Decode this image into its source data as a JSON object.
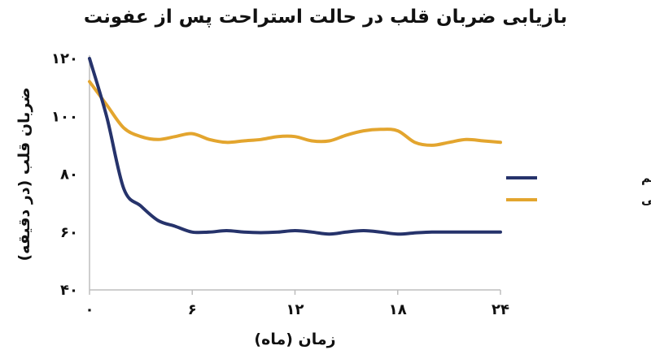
{
  "chart_data": {
    "type": "line",
    "title": "بازیابی ضربان قلب در حالت استراحت پس از عفونت",
    "xlabel": "زمان (ماه)",
    "ylabel": "ضربان قلب (در دقیقه)",
    "xlim": [
      0,
      24
    ],
    "ylim": [
      40,
      120
    ],
    "x_ticks": [
      0,
      6,
      12,
      18,
      24
    ],
    "x_tick_labels": [
      "۰",
      "۶",
      "۱۲",
      "۱۸",
      "۲۴"
    ],
    "y_ticks": [
      40,
      60,
      80,
      100,
      120
    ],
    "y_tick_labels": [
      "۴۰",
      "۶۰",
      "۸۰",
      "۱۰۰",
      "۱۲۰"
    ],
    "grid": false,
    "legend_position": "right",
    "series": [
      {
        "name": "فرد سالم",
        "color": "#26336b",
        "x": [
          0,
          1,
          2,
          3,
          4,
          5,
          6,
          7,
          8,
          9,
          10,
          11,
          12,
          13,
          14,
          15,
          16,
          17,
          18,
          19,
          20,
          21,
          22,
          23,
          24
        ],
        "values": [
          120,
          100,
          75,
          69,
          64,
          62,
          60,
          60,
          60.5,
          60,
          59.8,
          60,
          60.5,
          60,
          59.3,
          60,
          60.5,
          60,
          59.3,
          59.7,
          60,
          60,
          60,
          60,
          60
        ]
      },
      {
        "name": "بیمار کووید طولانی",
        "color": "#e3a52e",
        "x": [
          0,
          1,
          2,
          3,
          4,
          5,
          6,
          7,
          8,
          9,
          10,
          11,
          12,
          13,
          14,
          15,
          16,
          17,
          18,
          19,
          20,
          21,
          22,
          23,
          24
        ],
        "values": [
          112,
          104,
          96,
          93,
          92,
          93,
          94,
          92,
          91,
          91.5,
          92,
          93,
          93,
          91.5,
          91.5,
          93.5,
          95,
          95.5,
          95,
          91,
          90,
          91,
          92,
          91.5,
          91
        ]
      }
    ]
  }
}
